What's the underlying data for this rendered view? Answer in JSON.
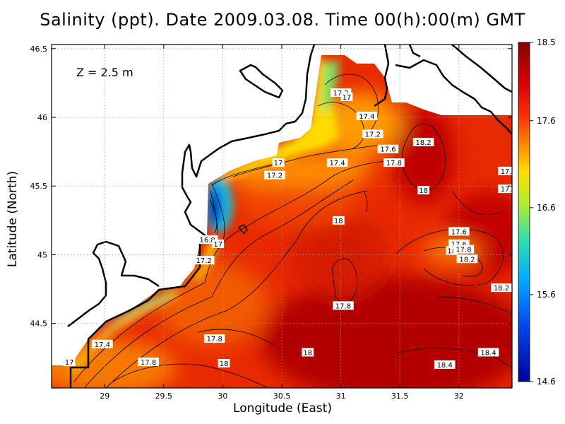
{
  "title": "Salinity (ppt). Date 2009.03.08. Time 00(h):00(m) GMT",
  "depth_label": "Z  =  2.5  m",
  "chart_data": {
    "type": "heatmap",
    "variable": "Salinity (ppt)",
    "xlabel": "Longitude (East)",
    "ylabel": "Latitude (North)",
    "xlim": [
      28.55,
      32.45
    ],
    "ylim": [
      44.03,
      46.53
    ],
    "x_ticks": [
      29,
      29.5,
      30,
      30.5,
      31,
      31.5,
      32
    ],
    "x_tick_labels": [
      "29",
      "29.5",
      "30",
      "30.5",
      "31",
      "31.5",
      "32"
    ],
    "y_ticks": [
      44.5,
      45,
      45.5,
      46,
      46.5
    ],
    "y_tick_labels": [
      "44.5",
      "45",
      "45.5",
      "46",
      "46.5"
    ],
    "grid": true,
    "colorbar": {
      "min": 14.6,
      "max": 18.5,
      "ticks": [
        18.5,
        17.6,
        16.6,
        15.6,
        14.6
      ],
      "tick_labels": [
        "18.5",
        "17.6",
        "16.6",
        "15.6",
        "14.6"
      ],
      "colors": [
        "#8b0000",
        "#d40000",
        "#ff3300",
        "#ff8800",
        "#ffdd00",
        "#aaee33",
        "#33ddaa",
        "#00aaff",
        "#0044ee",
        "#00009a"
      ]
    },
    "contour_labels": [
      {
        "lon": 31.0,
        "lat": 46.18,
        "text": "17.2"
      },
      {
        "lon": 31.05,
        "lat": 46.15,
        "text": "17"
      },
      {
        "lon": 31.22,
        "lat": 46.01,
        "text": "17.4"
      },
      {
        "lon": 31.27,
        "lat": 45.88,
        "text": "17.2"
      },
      {
        "lon": 31.7,
        "lat": 45.82,
        "text": "18.2"
      },
      {
        "lon": 31.4,
        "lat": 45.77,
        "text": "17.6"
      },
      {
        "lon": 30.47,
        "lat": 45.67,
        "text": "17"
      },
      {
        "lon": 30.97,
        "lat": 45.67,
        "text": "17.4"
      },
      {
        "lon": 31.45,
        "lat": 45.67,
        "text": "17.8"
      },
      {
        "lon": 32.4,
        "lat": 45.61,
        "text": "17."
      },
      {
        "lon": 30.44,
        "lat": 45.58,
        "text": "17.2"
      },
      {
        "lon": 31.7,
        "lat": 45.47,
        "text": "18"
      },
      {
        "lon": 32.4,
        "lat": 45.48,
        "text": "17."
      },
      {
        "lon": 30.98,
        "lat": 45.25,
        "text": "18"
      },
      {
        "lon": 32.0,
        "lat": 45.17,
        "text": "17.6"
      },
      {
        "lon": 29.87,
        "lat": 45.11,
        "text": "16.8"
      },
      {
        "lon": 29.96,
        "lat": 45.08,
        "text": "17"
      },
      {
        "lon": 32.0,
        "lat": 45.08,
        "text": "17.6"
      },
      {
        "lon": 31.94,
        "lat": 45.03,
        "text": "18"
      },
      {
        "lon": 32.04,
        "lat": 45.04,
        "text": "17.8"
      },
      {
        "lon": 32.07,
        "lat": 44.97,
        "text": "18.2"
      },
      {
        "lon": 29.84,
        "lat": 44.96,
        "text": "17.2"
      },
      {
        "lon": 32.36,
        "lat": 44.76,
        "text": "18.2"
      },
      {
        "lon": 31.02,
        "lat": 44.63,
        "text": "17.8"
      },
      {
        "lon": 28.98,
        "lat": 44.35,
        "text": "17.4"
      },
      {
        "lon": 29.93,
        "lat": 44.39,
        "text": "17.8"
      },
      {
        "lon": 30.72,
        "lat": 44.29,
        "text": "18"
      },
      {
        "lon": 32.25,
        "lat": 44.29,
        "text": "18.4"
      },
      {
        "lon": 28.7,
        "lat": 44.22,
        "text": "17"
      },
      {
        "lon": 29.37,
        "lat": 44.22,
        "text": "17.8"
      },
      {
        "lon": 30.01,
        "lat": 44.21,
        "text": "18"
      },
      {
        "lon": 31.88,
        "lat": 44.2,
        "text": "18.4"
      }
    ]
  }
}
